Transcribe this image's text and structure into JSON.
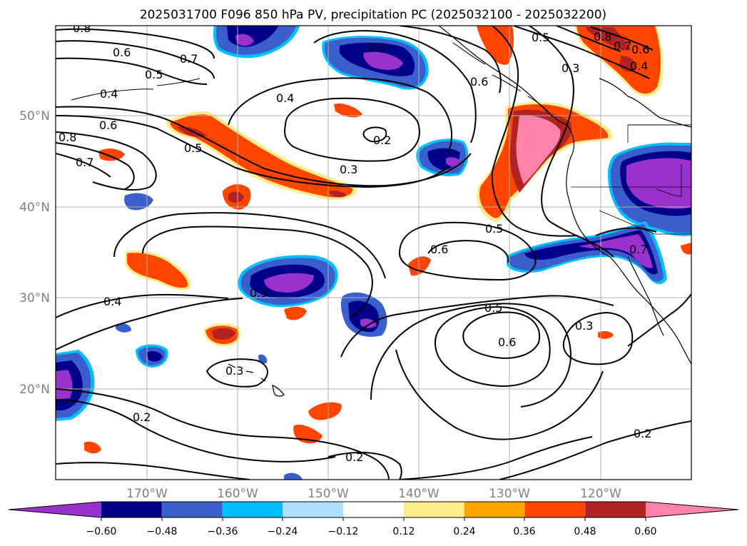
{
  "figure": {
    "title": "2025031700 F096 850 hPa PV, precipitation PC (2025032100 - 2025032200)"
  },
  "map": {
    "lat_labels": [
      "50°N",
      "40°N",
      "30°N",
      "20°N"
    ],
    "lon_labels": [
      "170°W",
      "160°W",
      "150°W",
      "140°W",
      "130°W",
      "120°W"
    ],
    "contour_labels": [
      "0.8",
      "0.6",
      "0.7",
      "0.5",
      "0.4",
      "0.5",
      "0.3",
      "0.6",
      "0.8",
      "0.7",
      "0.6",
      "0.4",
      "0.3",
      "0.4",
      "0.2",
      "0.3",
      "0.6",
      "0.8",
      "0.5",
      "0.7",
      "0.5",
      "0.6",
      "0.3",
      "0.4",
      "0.5",
      "0.6",
      "0.3",
      "0.3",
      "0.2",
      "0.2",
      "0.2",
      "0.7"
    ]
  },
  "colorbar": {
    "colors": [
      "#9932cc",
      "#00008b",
      "#3a5fcd",
      "#00bfff",
      "#b0e2ff",
      "#ffffff",
      "#ffec8b",
      "#ffa500",
      "#ff4500",
      "#b22222",
      "#ff82ab"
    ],
    "tick_labels": [
      "−0.60",
      "−0.48",
      "−0.36",
      "−0.24",
      "−0.12",
      "0.12",
      "0.24",
      "0.36",
      "0.48",
      "0.60"
    ]
  }
}
